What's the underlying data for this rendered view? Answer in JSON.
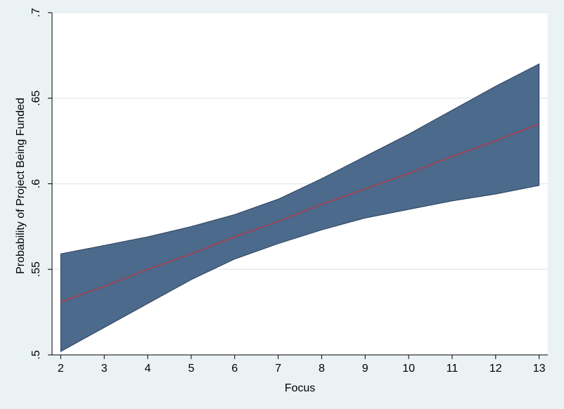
{
  "chart_data": {
    "type": "line",
    "title": "",
    "xlabel": "Focus",
    "ylabel": "Probability of Project Being Funded",
    "xlim": [
      1.8,
      13.2
    ],
    "ylim": [
      0.5,
      0.7
    ],
    "x_ticks": [
      2,
      3,
      4,
      5,
      6,
      7,
      8,
      9,
      10,
      11,
      12,
      13
    ],
    "x_tick_labels": [
      "2",
      "3",
      "4",
      "5",
      "6",
      "7",
      "8",
      "9",
      "10",
      "11",
      "12",
      "13"
    ],
    "y_ticks": [
      0.5,
      0.55,
      0.6,
      0.65,
      0.7
    ],
    "y_tick_labels": [
      ".5",
      ".55",
      ".6",
      ".65",
      ".7"
    ],
    "grid": "horizontal",
    "x": [
      2,
      3,
      4,
      5,
      6,
      7,
      8,
      9,
      10,
      11,
      12,
      13
    ],
    "series": [
      {
        "values": [
          0.531,
          0.54,
          0.55,
          0.559,
          0.569,
          0.578,
          0.588,
          0.597,
          0.606,
          0.616,
          0.625,
          0.635
        ],
        "lower": [
          0.502,
          0.516,
          0.53,
          0.544,
          0.556,
          0.565,
          0.573,
          0.58,
          0.585,
          0.59,
          0.594,
          0.599
        ],
        "upper": [
          0.559,
          0.564,
          0.569,
          0.575,
          0.582,
          0.591,
          0.603,
          0.616,
          0.629,
          0.643,
          0.657,
          0.67
        ]
      }
    ],
    "colors": {
      "background": "#eaf2f3",
      "plot_background": "#ffffff",
      "band": "#4c6a8c",
      "band_edge": "#2a3f5a",
      "line": "#b03a48",
      "grid": "#e5eef0",
      "axis": "#000000"
    }
  }
}
